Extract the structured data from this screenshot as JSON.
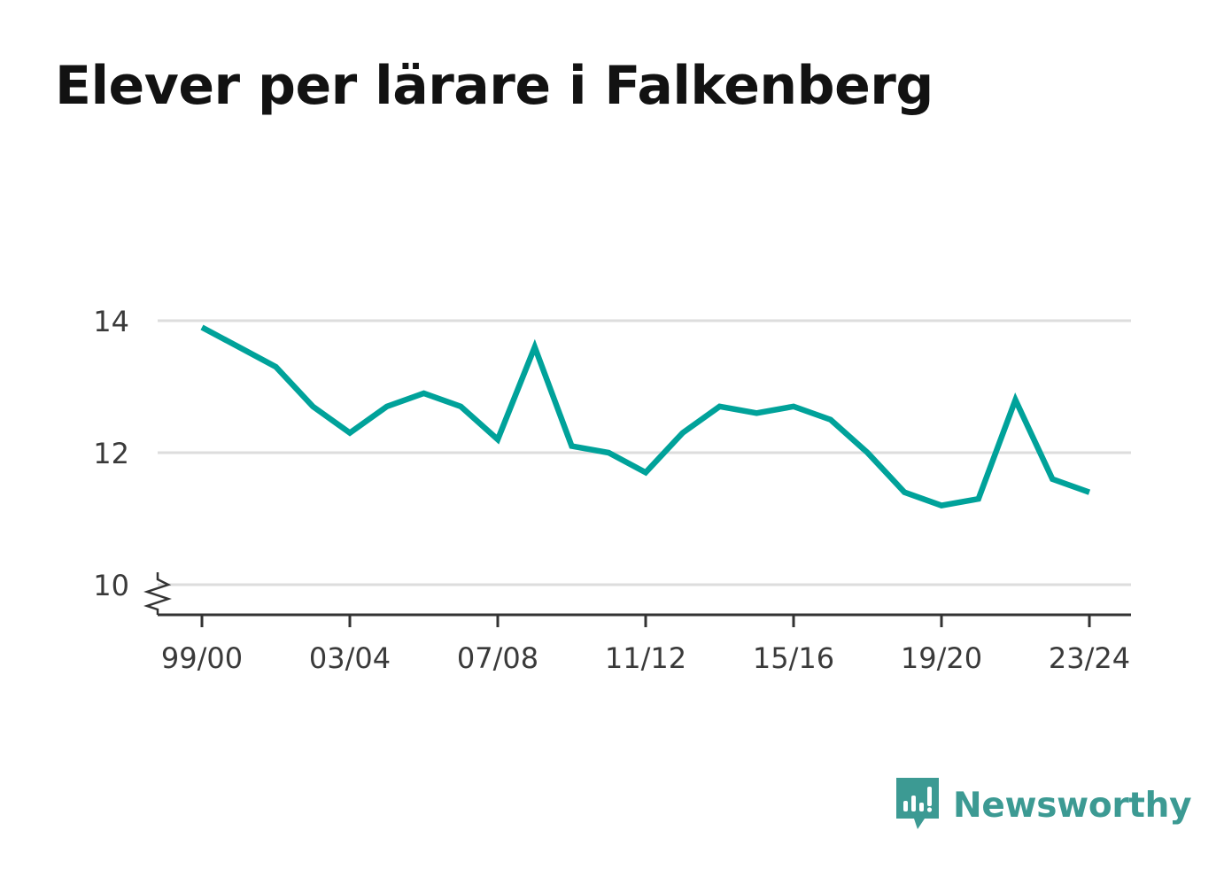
{
  "title": "Elever per lärare i Falkenberg",
  "brand": {
    "name": "Newsworthy",
    "icon": "newsworthy-logo-icon"
  },
  "colors": {
    "line": "#00a29a",
    "grid": "#dddddd",
    "axis": "#333333",
    "brand": "#3c9a93",
    "text": "#121212"
  },
  "chart_data": {
    "type": "line",
    "title": "Elever per lärare i Falkenberg",
    "xlabel": "",
    "ylabel": "",
    "x": [
      "99/00",
      "00/01",
      "01/02",
      "02/03",
      "03/04",
      "04/05",
      "05/06",
      "06/07",
      "07/08",
      "08/09",
      "09/10",
      "10/11",
      "11/12",
      "12/13",
      "13/14",
      "14/15",
      "15/16",
      "16/17",
      "17/18",
      "18/19",
      "19/20",
      "20/21",
      "21/22",
      "22/23",
      "23/24"
    ],
    "series": [
      {
        "name": "",
        "values": [
          13.9,
          13.6,
          13.3,
          12.7,
          12.3,
          12.7,
          12.9,
          12.7,
          12.2,
          13.6,
          12.1,
          12.0,
          11.7,
          12.3,
          12.7,
          12.6,
          12.7,
          12.5,
          12.0,
          11.4,
          11.2,
          11.3,
          12.8,
          11.6,
          11.4
        ]
      }
    ],
    "x_tick_labels": [
      "99/00",
      "03/04",
      "07/08",
      "11/12",
      "15/16",
      "19/20",
      "23/24"
    ],
    "y_ticks": [
      10,
      12,
      14
    ],
    "ylim": [
      10,
      14
    ],
    "y_axis_break": true,
    "grid": true,
    "legend": "none"
  }
}
